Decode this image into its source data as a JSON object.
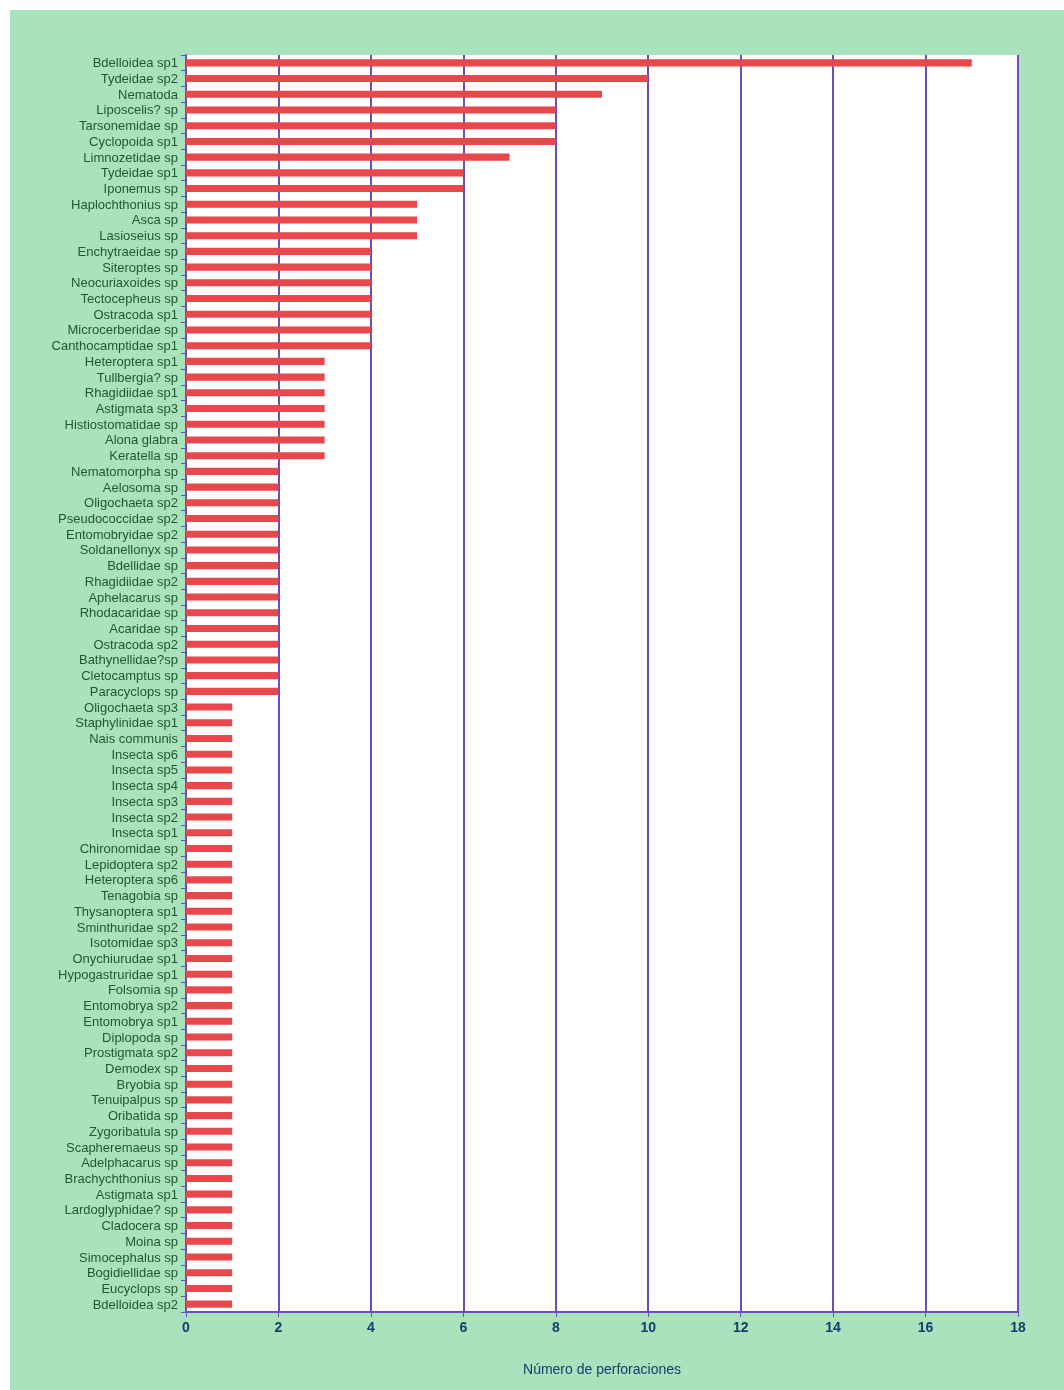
{
  "chart_data": {
    "type": "bar",
    "orientation": "horizontal",
    "xlabel": "Número de perforaciones",
    "categories": [
      "Bdelloidea sp1",
      "Tydeidae sp2",
      "Nematoda",
      "Liposcelis? sp",
      "Tarsonemidae sp",
      "Cyclopoida sp1",
      "Limnozetidae sp",
      "Tydeidae sp1",
      "Iponemus sp",
      "Haplochthonius sp",
      "Asca sp",
      "Lasioseius sp",
      "Enchytraeidae sp",
      "Siteroptes sp",
      "Neocuriaxoides sp",
      "Tectocepheus sp",
      "Ostracoda sp1",
      "Microcerberidae sp",
      "Canthocamptidae sp1",
      "Heteroptera sp1",
      "Tullbergia? sp",
      "Rhagidiidae sp1",
      "Astigmata sp3",
      "Histiostomatidae sp",
      "Alona glabra",
      "Keratella sp",
      "Nematomorpha sp",
      "Aelosoma sp",
      "Oligochaeta sp2",
      "Pseudococcidae sp2",
      "Entomobryidae sp2",
      "Soldanellonyx sp",
      "Bdellidae sp",
      "Rhagidiidae sp2",
      "Aphelacarus sp",
      "Rhodacaridae sp",
      "Acaridae sp",
      "Ostracoda sp2",
      "Bathynellidae?sp",
      "Cletocamptus sp",
      "Paracyclops sp",
      "Oligochaeta sp3",
      "Staphylinidae sp1",
      "Nais communis",
      "Insecta sp6",
      "Insecta sp5",
      "Insecta sp4",
      "Insecta sp3",
      "Insecta sp2",
      "Insecta sp1",
      "Chironomidae sp",
      "Lepidoptera sp2",
      "Heteroptera sp6",
      "Tenagobia sp",
      "Thysanoptera sp1",
      "Sminthuridae sp2",
      "Isotomidae sp3",
      "Onychiurudae sp1",
      "Hypogastruridae sp1",
      "Folsomia sp",
      "Entomobrya sp2",
      "Entomobrya sp1",
      "Diplopoda sp",
      "Prostigmata sp2",
      "Demodex sp",
      "Bryobia sp",
      "Tenuipalpus sp",
      "Oribatida sp",
      "Zygoribatula sp",
      "Scapheremaeus sp",
      "Adelphacarus sp",
      "Brachychthonius sp",
      "Astigmata sp1",
      "Lardoglyphidae? sp",
      "Cladocera sp",
      "Moina sp",
      "Simocephalus sp",
      "Bogidiellidae sp",
      "Eucyclops sp",
      "Bdelloidea sp2"
    ],
    "values": [
      17,
      10,
      9,
      8,
      8,
      8,
      7,
      6,
      6,
      5,
      5,
      5,
      4,
      4,
      4,
      4,
      4,
      4,
      4,
      3,
      3,
      3,
      3,
      3,
      3,
      3,
      2,
      2,
      2,
      2,
      2,
      2,
      2,
      2,
      2,
      2,
      2,
      2,
      2,
      2,
      2,
      1,
      1,
      1,
      1,
      1,
      1,
      1,
      1,
      1,
      1,
      1,
      1,
      1,
      1,
      1,
      1,
      1,
      1,
      1,
      1,
      1,
      1,
      1,
      1,
      1,
      1,
      1,
      1,
      1,
      1,
      1,
      1,
      1,
      1,
      1,
      1,
      1,
      1,
      1
    ],
    "color": "#e8474b",
    "xlim": [
      0,
      18
    ],
    "xticks": [
      0,
      2,
      4,
      6,
      8,
      10,
      12,
      14,
      16,
      18
    ],
    "grid": "x"
  }
}
